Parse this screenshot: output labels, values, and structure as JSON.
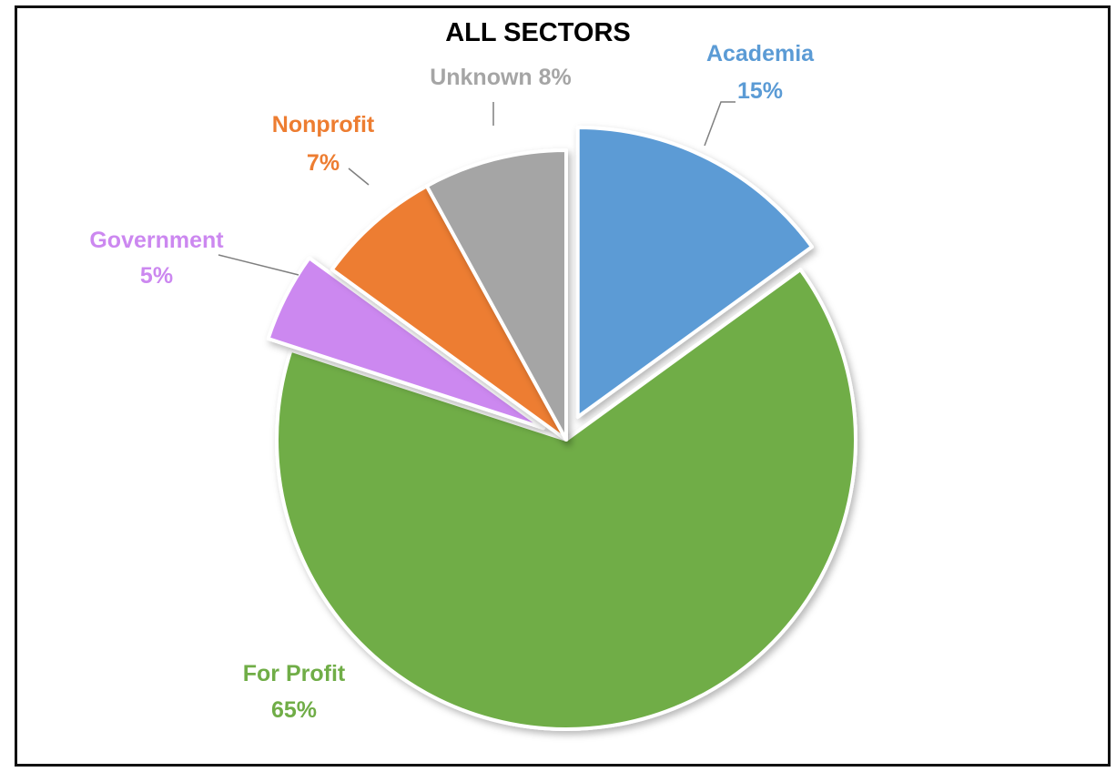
{
  "chart_data": {
    "type": "pie",
    "title": "ALL SECTORS",
    "slices": [
      {
        "name": "Academia",
        "value": 15,
        "label": "15%",
        "color": "#5b9bd5"
      },
      {
        "name": "For Profit",
        "value": 65,
        "label": "65%",
        "color": "#70ad47"
      },
      {
        "name": "Government",
        "value": 5,
        "label": "5%",
        "color": "#cc88f0"
      },
      {
        "name": "Nonprofit",
        "value": 7,
        "label": "7%",
        "color": "#ed7d31"
      },
      {
        "name": "Unknown",
        "value": 8,
        "label": "8%",
        "color": "#a5a5a5"
      }
    ],
    "unit": "%",
    "exploded_slices": [
      "Academia",
      "Government"
    ],
    "start_angle": "12 o'clock, clockwise",
    "legend": "none (data labels with leader lines)"
  }
}
